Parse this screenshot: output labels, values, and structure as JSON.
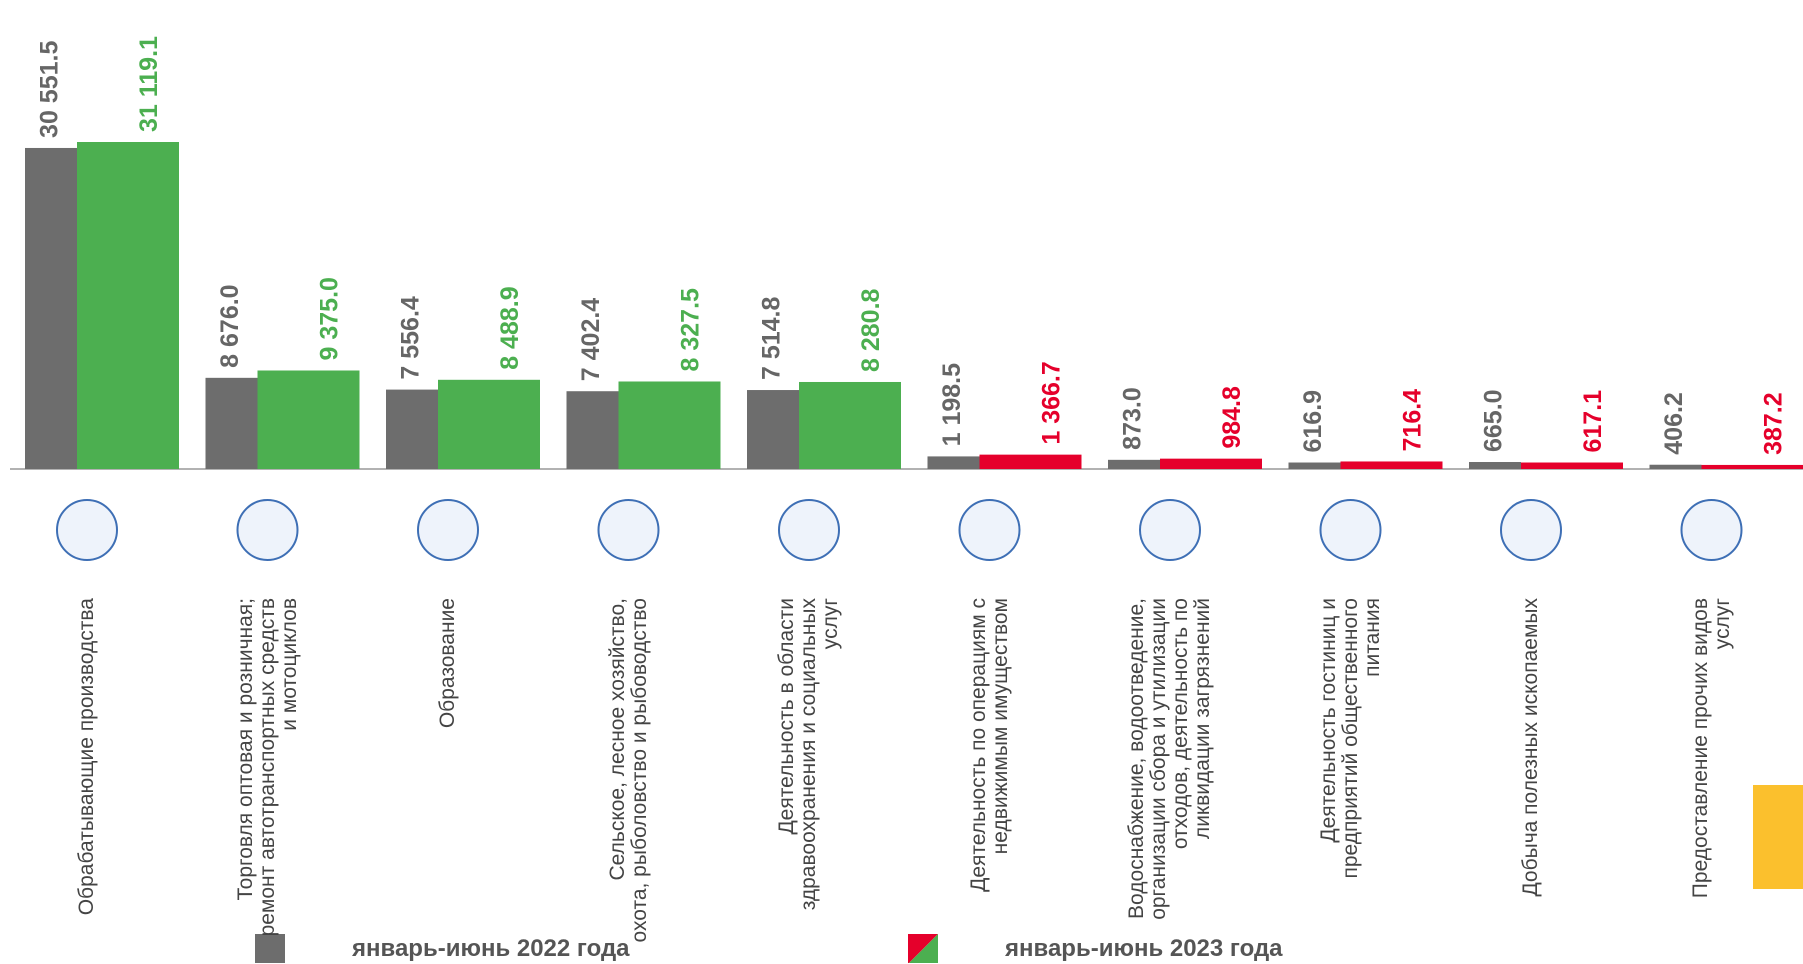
{
  "chart_data": {
    "type": "bar",
    "categories": [
      "Обрабатывающие производства",
      "Торговля оптовая и розничная; ремонт автотранспортных средств и мотоциклов",
      "Образование",
      "Сельское, лесное хозяйство, охота, рыболовство и рыбоводство",
      "Деятельность в области здравоохранения и социальных услуг",
      "Деятельность по операциям с недвижимым имуществом",
      "Водоснабжение, водоотведение, организации сбора и утилизации отходов, деятельность по ликвидации загрязнений",
      "Деятельность гостиниц и предприятий общественного питания",
      "Добыча полезных ископаемых",
      "Предоставление прочих видов услуг"
    ],
    "series": [
      {
        "name": "январь-июнь 2022 года",
        "color": "#6d6d6d",
        "label_color": "#666666",
        "values": [
          30551.5,
          8676.0,
          7556.4,
          7402.4,
          7514.8,
          1198.5,
          873.0,
          616.9,
          665.0,
          406.2
        ],
        "value_labels": [
          "30 551.5",
          "8 676.0",
          "7 556.4",
          "7 402.4",
          "7 514.8",
          "1 198.5",
          "873.0",
          "616.9",
          "665.0",
          "406.2"
        ]
      },
      {
        "name": "январь-июнь 2023 года",
        "colors": [
          "#4caf50",
          "#4caf50",
          "#4caf50",
          "#4caf50",
          "#4caf50",
          "#e5002b",
          "#e5002b",
          "#e5002b",
          "#e5002b",
          "#e5002b"
        ],
        "values": [
          31119.1,
          9375.0,
          8488.9,
          8327.5,
          8280.8,
          1366.7,
          984.8,
          716.4,
          617.1,
          387.2
        ],
        "value_labels": [
          "31 119.1",
          "9 375.0",
          "8 488.9",
          "8 327.5",
          "8 280.8",
          "1 366.7",
          "984.8",
          "716.4",
          "617.1",
          "387.2"
        ]
      }
    ]
  }
}
